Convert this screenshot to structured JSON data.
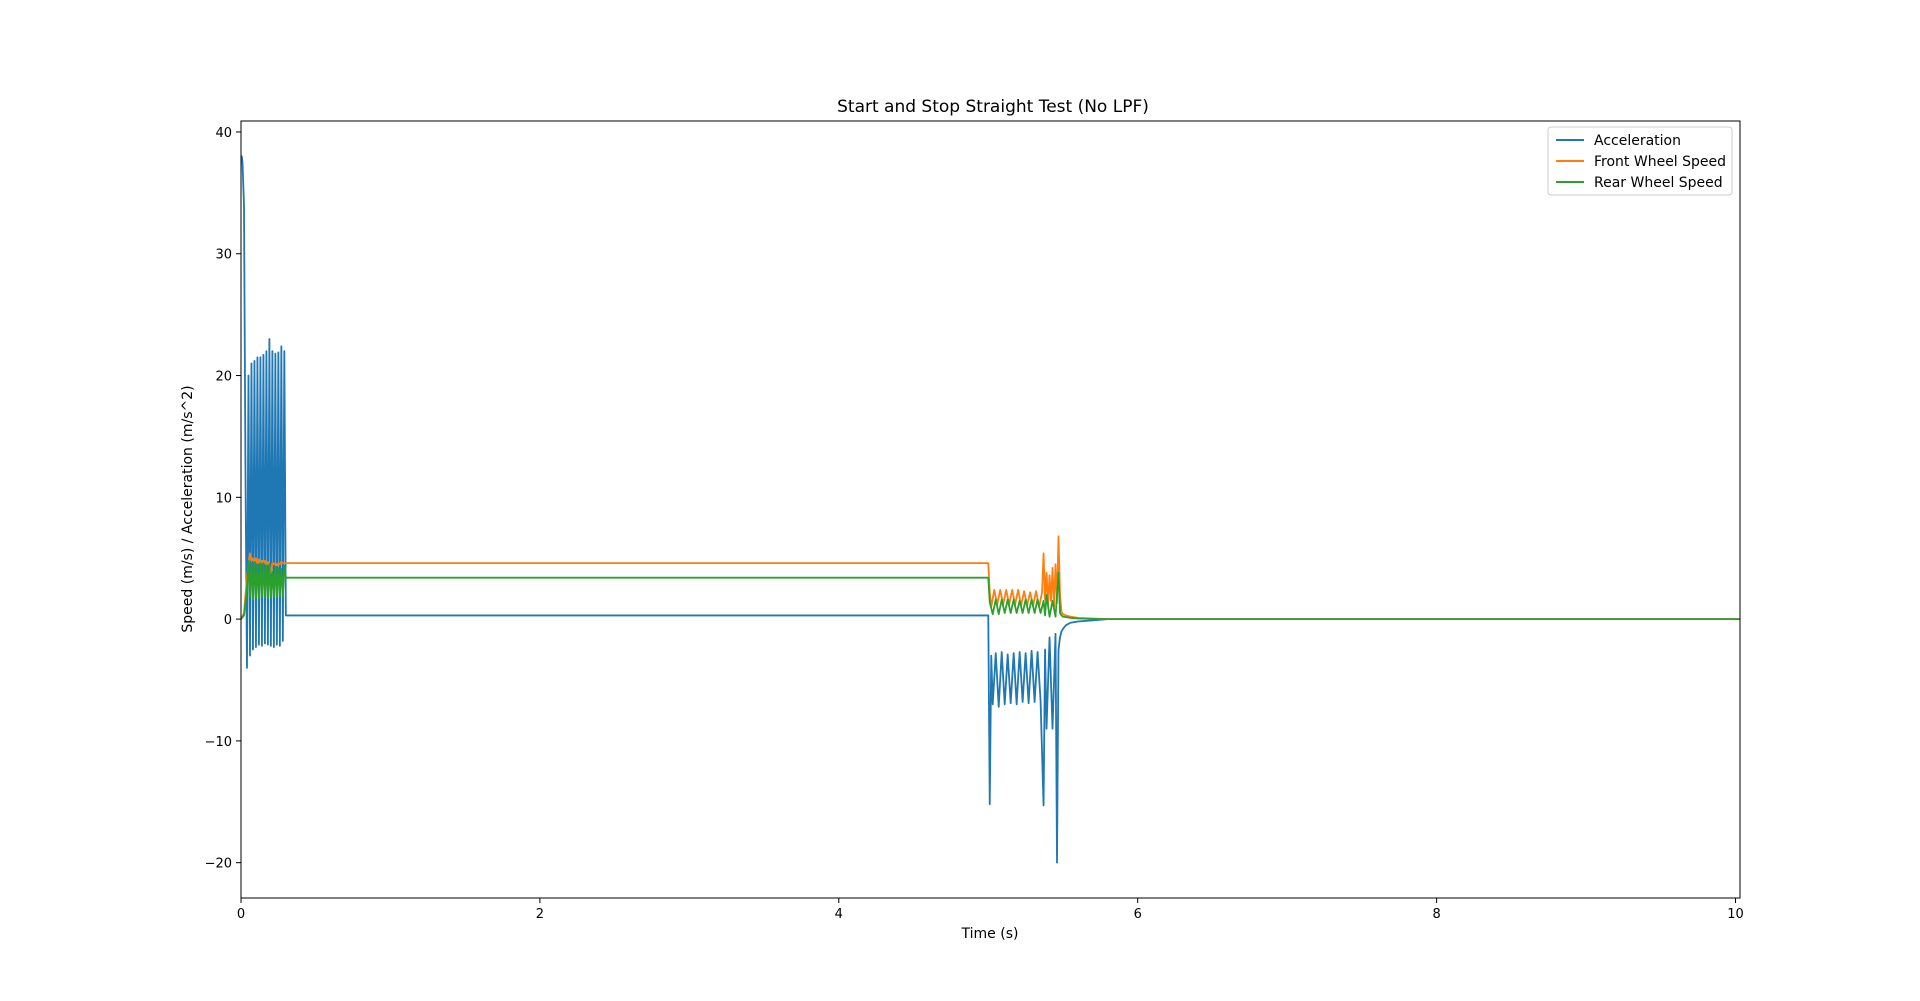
{
  "chart_data": {
    "type": "line",
    "title": "Start and Stop Straight Test (No LPF)",
    "xlabel": "Time (s)",
    "ylabel": "Speed (m/s) / Acceleration (m/s^2)",
    "xlim": [
      0,
      10.03
    ],
    "ylim": [
      -22.9,
      40.9
    ],
    "xticks": [
      0,
      2,
      4,
      6,
      8,
      10
    ],
    "yticks": [
      -20,
      -10,
      0,
      10,
      20,
      30,
      40
    ],
    "grid": false,
    "legend_position": "upper right",
    "series": [
      {
        "name": "Acceleration",
        "color": "#1f77b4",
        "x": [
          0,
          0.005,
          0.01,
          0.02,
          0.03,
          0.04,
          0.05,
          0.06,
          0.07,
          0.08,
          0.09,
          0.1,
          0.11,
          0.12,
          0.13,
          0.14,
          0.15,
          0.16,
          0.17,
          0.18,
          0.19,
          0.2,
          0.21,
          0.22,
          0.23,
          0.24,
          0.25,
          0.26,
          0.27,
          0.28,
          0.29,
          0.3,
          5.0,
          5.01,
          5.02,
          5.03,
          5.05,
          5.07,
          5.09,
          5.11,
          5.13,
          5.15,
          5.17,
          5.19,
          5.21,
          5.23,
          5.25,
          5.27,
          5.29,
          5.31,
          5.33,
          5.35,
          5.37,
          5.38,
          5.39,
          5.41,
          5.43,
          5.45,
          5.46,
          5.47,
          5.48,
          5.49,
          5.5,
          5.52,
          5.55,
          5.6,
          5.7,
          5.8,
          5.9,
          10.03
        ],
        "y": [
          38,
          38,
          37.5,
          34,
          12,
          -4,
          20,
          -3,
          21,
          -2.5,
          21.2,
          -2.3,
          21.5,
          -2.1,
          21.5,
          -2.2,
          21.7,
          -2.0,
          22.0,
          -2.1,
          23,
          -2.2,
          22,
          -2.3,
          21.8,
          -2.1,
          21.9,
          -2.2,
          22.4,
          -1.8,
          22.0,
          0.3,
          0.3,
          -15.2,
          -3,
          -7,
          -2.8,
          -7.2,
          -2.7,
          -7,
          -2.9,
          -6.9,
          -2.8,
          -7,
          -2.7,
          -6.8,
          -2.8,
          -6.9,
          -2.6,
          -6.8,
          -2.7,
          -6.7,
          -15.3,
          -2.5,
          -9,
          -1.5,
          -9,
          -1.2,
          -20,
          -2.5,
          -1.5,
          -1,
          -0.8,
          -0.5,
          -0.3,
          -0.2,
          -0.1,
          0,
          0,
          0
        ]
      },
      {
        "name": "Front Wheel Speed",
        "color": "#ff7f0e",
        "x": [
          0,
          0.02,
          0.04,
          0.06,
          0.07,
          0.08,
          0.09,
          0.1,
          0.11,
          0.12,
          0.13,
          0.14,
          0.15,
          0.16,
          0.17,
          0.18,
          0.19,
          0.2,
          0.21,
          0.22,
          0.23,
          0.24,
          0.25,
          0.26,
          0.27,
          0.28,
          0.3,
          5.0,
          5.01,
          5.02,
          5.04,
          5.06,
          5.08,
          5.1,
          5.12,
          5.14,
          5.16,
          5.18,
          5.2,
          5.22,
          5.24,
          5.26,
          5.28,
          5.3,
          5.32,
          5.34,
          5.36,
          5.37,
          5.38,
          5.39,
          5.4,
          5.41,
          5.42,
          5.43,
          5.44,
          5.45,
          5.46,
          5.47,
          5.48,
          5.49,
          5.5,
          5.52,
          5.55,
          5.6,
          5.7,
          5.8,
          10.03
        ],
        "y": [
          0,
          0.5,
          3.5,
          5.4,
          4.8,
          5.0,
          4.6,
          5.0,
          4.5,
          4.9,
          4.5,
          4.8,
          4.5,
          4.8,
          4.4,
          4.7,
          4.4,
          3.8,
          4.6,
          4.5,
          4.6,
          4.4,
          4.6,
          4.5,
          4.7,
          4.6,
          4.6,
          4.6,
          2.2,
          1.0,
          2.4,
          1.2,
          2.4,
          1.2,
          2.4,
          1.2,
          2.4,
          1.2,
          2.4,
          1.1,
          2.3,
          1.1,
          2.2,
          1.1,
          2.3,
          1.0,
          2.2,
          5.4,
          1.6,
          3.8,
          1.2,
          3.6,
          1.5,
          4.2,
          1.0,
          4.5,
          1.3,
          6.8,
          2.0,
          0.6,
          0.4,
          0.3,
          0.2,
          0.1,
          0.05,
          0,
          0
        ]
      },
      {
        "name": "Rear Wheel Speed",
        "color": "#2ca02c",
        "x": [
          0,
          0.02,
          0.04,
          0.05,
          0.06,
          0.07,
          0.08,
          0.09,
          0.1,
          0.11,
          0.12,
          0.13,
          0.14,
          0.15,
          0.16,
          0.17,
          0.18,
          0.19,
          0.2,
          0.21,
          0.22,
          0.23,
          0.24,
          0.25,
          0.26,
          0.27,
          0.28,
          0.29,
          0.3,
          5.0,
          5.01,
          5.03,
          5.05,
          5.07,
          5.09,
          5.11,
          5.13,
          5.15,
          5.17,
          5.19,
          5.21,
          5.23,
          5.25,
          5.27,
          5.29,
          5.31,
          5.33,
          5.35,
          5.37,
          5.38,
          5.39,
          5.41,
          5.43,
          5.45,
          5.46,
          5.47,
          5.48,
          5.49,
          5.5,
          5.55,
          5.6,
          5.7,
          5.8,
          10.03
        ],
        "y": [
          0,
          0.3,
          2.5,
          4.8,
          1.8,
          4.6,
          1.6,
          4.7,
          1.7,
          4.5,
          1.7,
          4.6,
          1.8,
          4.6,
          1.8,
          4.4,
          1.7,
          4.5,
          1.8,
          3.9,
          1.8,
          4.3,
          1.8,
          4.2,
          1.9,
          4.1,
          1.9,
          4.4,
          3.4,
          3.4,
          1.4,
          0.4,
          1.6,
          0.4,
          1.6,
          0.5,
          1.6,
          0.5,
          1.6,
          0.5,
          1.5,
          0.5,
          1.6,
          0.5,
          1.6,
          0.5,
          1.6,
          0.5,
          1.5,
          0.3,
          2.0,
          0.2,
          1.5,
          0.2,
          2.0,
          3.8,
          0.5,
          0.3,
          0.2,
          0.1,
          0.05,
          0.02,
          0,
          0
        ]
      }
    ]
  }
}
